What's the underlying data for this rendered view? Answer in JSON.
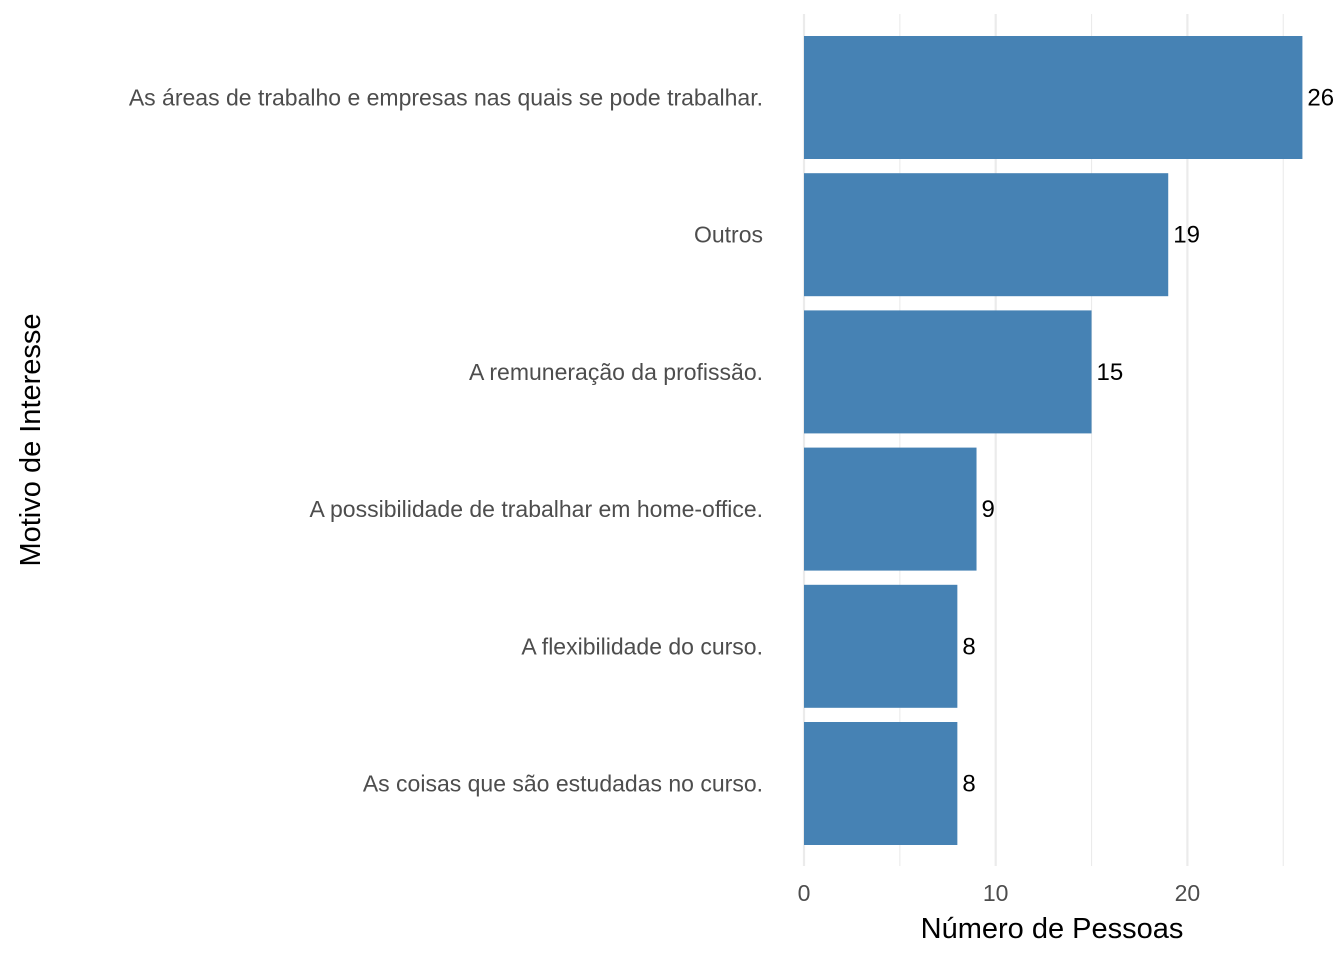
{
  "chart_data": {
    "type": "bar",
    "orientation": "horizontal",
    "categories": [
      "As áreas de trabalho e empresas nas quais se pode trabalhar.",
      "Outros",
      "A remuneração da profissão.",
      "A possibilidade de trabalhar em home-office.",
      "A flexibilidade do curso.",
      "As coisas que são estudadas no curso."
    ],
    "values": [
      26,
      19,
      15,
      9,
      8,
      8
    ],
    "data_labels": [
      "26",
      "19",
      "15",
      "9",
      "8",
      "8"
    ],
    "xlabel": "Número de Pessoas",
    "ylabel": "Motivo de Interesse",
    "xlim": [
      0,
      26
    ],
    "x_ticks": [
      "0",
      "10",
      "20"
    ],
    "grid": true,
    "legend": "none",
    "bar_color": "#4682B4"
  }
}
